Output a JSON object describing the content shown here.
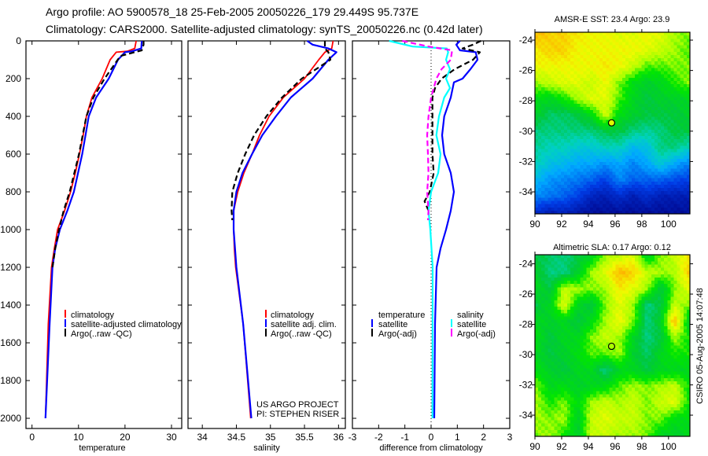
{
  "header": {
    "line1": "Argo profile: AO 5900578_18 25-Feb-2005 20050226_179 29.449S 95.737E",
    "line2": "Climatology: CARS2000. Satellite-adjusted climatology: synTS_20050226.nc (0.42d later)"
  },
  "colors": {
    "clim": "#ff0000",
    "sat": "#0000ff",
    "argo": "#000000",
    "sal_sat": "#00ffff",
    "sal_argo": "#ff00ff"
  },
  "chart_data": [
    {
      "type": "line",
      "id": "temperature",
      "xlabel": "temperature",
      "ylabel": "",
      "xlim": [
        -1.3,
        32.2
      ],
      "ylim": [
        0,
        2054
      ],
      "y_inverted": true,
      "xticks": [
        "0",
        "10",
        "20",
        "30"
      ],
      "xtick_values": [
        0,
        10,
        20,
        30
      ],
      "yticks": [
        "0",
        "200",
        "400",
        "600",
        "800",
        "1000",
        "1200",
        "1400",
        "1600",
        "1800",
        "2000"
      ],
      "ytick_values": [
        0,
        200,
        400,
        600,
        800,
        1000,
        1200,
        1400,
        1600,
        1800,
        2000
      ],
      "legend": [
        "climatology",
        "satellite-adjusted climatology",
        "Argo(..raw -QC)"
      ],
      "series": [
        {
          "name": "climatology",
          "color": "clim",
          "dash": false,
          "depth": [
            0,
            40,
            55,
            60,
            100,
            200,
            300,
            400,
            500,
            600,
            700,
            800,
            900,
            1000,
            1100,
            1200,
            1500,
            2000
          ],
          "values": [
            22.4,
            22.1,
            20.5,
            18.1,
            16.8,
            15.1,
            12.9,
            11.7,
            11.0,
            10.2,
            9.3,
            8.3,
            7.0,
            5.5,
            4.8,
            4.2,
            3.5,
            2.9
          ]
        },
        {
          "name": "satellite-adjusted climatology",
          "color": "sat",
          "dash": false,
          "depth": [
            0,
            40,
            55,
            60,
            100,
            200,
            300,
            400,
            500,
            600,
            700,
            800,
            900,
            1000,
            1100,
            1200,
            1500,
            2000
          ],
          "values": [
            23.6,
            23.5,
            21.5,
            20.0,
            18.5,
            16.5,
            13.8,
            12.2,
            11.5,
            10.8,
            9.9,
            9.0,
            7.6,
            6.0,
            5.0,
            4.4,
            3.8,
            2.9
          ]
        },
        {
          "name": "Argo(..raw -QC)",
          "color": "argo",
          "dash": true,
          "depth": [
            0,
            20,
            50,
            80,
            200,
            300,
            400,
            500,
            600,
            700,
            800,
            900,
            1000,
            1100,
            1200
          ],
          "values": [
            24.0,
            24.0,
            23.6,
            19.0,
            15.6,
            13.2,
            11.7,
            10.9,
            10.1,
            9.1,
            8.1,
            6.8,
            5.8,
            5.0,
            4.4
          ]
        }
      ]
    },
    {
      "type": "line",
      "id": "salinity",
      "xlabel": "salinity",
      "xlim": [
        33.79,
        36.1
      ],
      "ylim": [
        0,
        2054
      ],
      "y_inverted": true,
      "xticks": [
        "34",
        "34.5",
        "35",
        "35.5",
        "36"
      ],
      "xtick_values": [
        34,
        34.5,
        35,
        35.5,
        36
      ],
      "legend": [
        "climatology",
        "satellite adj. clim.",
        "Argo(..raw -QC)"
      ],
      "annotation": [
        "US ARGO PROJECT",
        "PI: STEPHEN RISER"
      ],
      "series": [
        {
          "name": "climatology",
          "color": "clim",
          "dash": false,
          "depth": [
            0,
            40,
            60,
            100,
            200,
            300,
            400,
            500,
            600,
            700,
            800,
            900,
            1000,
            1100,
            1200,
            1500,
            2000
          ],
          "values": [
            35.92,
            35.9,
            35.8,
            35.71,
            35.5,
            35.19,
            34.98,
            34.84,
            34.73,
            34.61,
            34.52,
            34.46,
            34.46,
            34.47,
            34.49,
            34.6,
            34.71
          ]
        },
        {
          "name": "satellite adj. clim.",
          "color": "sat",
          "dash": false,
          "depth": [
            0,
            20,
            40,
            60,
            100,
            200,
            300,
            400,
            500,
            600,
            700,
            800,
            900,
            1000,
            1200,
            1500,
            2000
          ],
          "values": [
            35.54,
            35.62,
            35.85,
            35.97,
            35.85,
            35.62,
            35.3,
            35.08,
            34.88,
            34.73,
            34.59,
            34.5,
            34.46,
            34.46,
            34.5,
            34.6,
            34.72
          ]
        },
        {
          "name": "Argo(..raw -QC)",
          "color": "argo",
          "dash": true,
          "depth": [
            0,
            40,
            60,
            100,
            200,
            300,
            400,
            500,
            600,
            700,
            800,
            900,
            950
          ],
          "values": [
            35.8,
            35.8,
            35.85,
            35.88,
            35.46,
            35.17,
            34.94,
            34.76,
            34.63,
            34.52,
            34.44,
            34.43,
            34.44
          ]
        }
      ]
    },
    {
      "type": "line",
      "id": "difference",
      "xlabel": "difference from climatology",
      "xlim": [
        -3,
        3
      ],
      "ylim": [
        0,
        2054
      ],
      "y_inverted": true,
      "xticks": [
        "-3",
        "-2",
        "-1",
        "0",
        "1",
        "2",
        "3"
      ],
      "xtick_values": [
        -3,
        -2,
        -1,
        0,
        1,
        2,
        3
      ],
      "zero_line": true,
      "legend_groups": [
        {
          "title": "temperature",
          "items": [
            "satellite",
            "Argo(-adj)"
          ]
        },
        {
          "title": "salinity",
          "items": [
            "satellite",
            "Argo(-adj)"
          ]
        }
      ],
      "series": [
        {
          "name": "temperature satellite",
          "color": "sat",
          "dash": false,
          "depth": [
            0,
            20,
            50,
            60,
            100,
            150,
            200,
            220,
            300,
            400,
            500,
            600,
            700,
            800,
            900,
            1000,
            1100,
            1200,
            1500,
            2000
          ],
          "values": [
            1.1,
            0.96,
            1.1,
            1.7,
            1.77,
            1.5,
            1.2,
            0.87,
            0.75,
            0.5,
            0.42,
            0.5,
            0.75,
            0.87,
            0.75,
            0.57,
            0.36,
            0.21,
            0.15,
            0.12
          ]
        },
        {
          "name": "temperature Argo(-adj)",
          "color": "argo",
          "dash": true,
          "depth": [
            0,
            20,
            40,
            60,
            100,
            150,
            200,
            250,
            300,
            400,
            500,
            600,
            700,
            800,
            850,
            900
          ],
          "values": [
            1.9,
            1.6,
            1.2,
            1.86,
            1.6,
            0.9,
            0.4,
            0.15,
            0.05,
            0.05,
            0.05,
            0.05,
            0.1,
            -0.05,
            -0.25,
            -0.1
          ]
        },
        {
          "name": "salinity satellite",
          "color": "sal_sat",
          "dash": false,
          "depth": [
            0,
            30,
            40,
            60,
            100,
            150,
            200,
            250,
            300,
            400,
            500,
            600,
            700,
            800,
            900,
            1000,
            1200,
            2000
          ],
          "values": [
            -1.6,
            -0.7,
            0.6,
            0.65,
            0.57,
            0.72,
            0.57,
            0.72,
            0.5,
            0.3,
            0.2,
            0.36,
            0.27,
            0.0,
            -0.1,
            -0.03,
            0.06,
            0.05
          ]
        },
        {
          "name": "salinity Argo(-adj)",
          "color": "sal_argo",
          "dash": true,
          "depth": [
            0,
            30,
            50,
            100,
            150,
            200,
            300,
            400,
            500,
            600,
            700,
            800,
            900,
            950
          ],
          "values": [
            -1.1,
            -0.1,
            0.8,
            0.75,
            0.4,
            0.2,
            0.0,
            -0.1,
            -0.15,
            -0.12,
            -0.1,
            -0.15,
            -0.1,
            -0.12
          ]
        }
      ]
    },
    {
      "type": "heatmap",
      "id": "sst-map",
      "title": "AMSR-E SST: 23.4 Argo: 23.9",
      "xlim": [
        90,
        101.6
      ],
      "ylim": [
        -35.45,
        -23.48
      ],
      "xticks": [
        "90",
        "92",
        "94",
        "96",
        "98",
        "100"
      ],
      "xtick_values": [
        90,
        92,
        94,
        96,
        98,
        100
      ],
      "yticks": [
        "-24",
        "-26",
        "-28",
        "-30",
        "-32",
        "-34"
      ],
      "ytick_values": [
        -24,
        -26,
        -28,
        -30,
        -32,
        -34
      ],
      "marker": {
        "lon": 95.737,
        "lat": -29.449,
        "value_norm": 0.78
      },
      "grid_note": "rows north to south, normalized 0-1",
      "grid": [
        [
          0.88,
          0.85,
          0.85,
          0.82,
          0.8,
          0.8,
          0.78,
          0.78,
          0.8,
          0.78,
          0.72,
          0.7
        ],
        [
          0.82,
          0.85,
          0.85,
          0.8,
          0.8,
          0.8,
          0.8,
          0.8,
          0.78,
          0.75,
          0.72,
          0.68
        ],
        [
          0.8,
          0.8,
          0.8,
          0.8,
          0.8,
          0.82,
          0.8,
          0.75,
          0.68,
          0.68,
          0.7,
          0.7
        ],
        [
          0.72,
          0.75,
          0.78,
          0.78,
          0.75,
          0.8,
          0.7,
          0.62,
          0.58,
          0.6,
          0.66,
          0.7
        ],
        [
          0.62,
          0.6,
          0.65,
          0.72,
          0.78,
          0.78,
          0.68,
          0.6,
          0.55,
          0.58,
          0.58,
          0.6
        ],
        [
          0.58,
          0.52,
          0.52,
          0.55,
          0.62,
          0.76,
          0.62,
          0.58,
          0.55,
          0.55,
          0.55,
          0.58
        ],
        [
          0.5,
          0.5,
          0.5,
          0.5,
          0.5,
          0.55,
          0.55,
          0.5,
          0.48,
          0.5,
          0.55,
          0.55
        ],
        [
          0.48,
          0.45,
          0.45,
          0.42,
          0.42,
          0.45,
          0.45,
          0.38,
          0.4,
          0.5,
          0.5,
          0.45
        ],
        [
          0.45,
          0.4,
          0.38,
          0.35,
          0.35,
          0.32,
          0.35,
          0.3,
          0.35,
          0.42,
          0.35,
          0.3
        ],
        [
          0.38,
          0.32,
          0.3,
          0.28,
          0.25,
          0.2,
          0.3,
          0.25,
          0.25,
          0.25,
          0.22,
          0.2
        ],
        [
          0.3,
          0.28,
          0.25,
          0.2,
          0.12,
          0.1,
          0.15,
          0.1,
          0.15,
          0.1,
          0.1,
          0.1
        ],
        [
          0.15,
          0.1,
          0.12,
          0.08,
          0.05,
          0.05,
          0.05,
          0.05,
          0.05,
          0.05,
          0.05,
          0.05
        ]
      ]
    },
    {
      "type": "heatmap",
      "id": "sla-map",
      "title": "Altimetric SLA: 0.17 Argo: 0.12",
      "xlim": [
        90,
        101.6
      ],
      "ylim": [
        -35.4,
        -23.4
      ],
      "xticks": [
        "90",
        "92",
        "94",
        "96",
        "98",
        "100"
      ],
      "xtick_values": [
        90,
        92,
        94,
        96,
        98,
        100
      ],
      "yticks": [
        "-24",
        "-26",
        "-28",
        "-30",
        "-32",
        "-34"
      ],
      "ytick_values": [
        -24,
        -26,
        -28,
        -30,
        -32,
        -34
      ],
      "marker": {
        "lon": 95.737,
        "lat": -29.449,
        "value_norm": 0.72
      },
      "grid_note": "rows north to south, normalized 0-1",
      "grid": [
        [
          0.55,
          0.52,
          0.5,
          0.55,
          0.6,
          0.72,
          0.75,
          0.78,
          0.6,
          0.7,
          0.75,
          0.82
        ],
        [
          0.58,
          0.5,
          0.5,
          0.58,
          0.72,
          0.78,
          0.88,
          0.85,
          0.75,
          0.72,
          0.72,
          0.85
        ],
        [
          0.6,
          0.55,
          0.75,
          0.72,
          0.7,
          0.72,
          0.82,
          0.78,
          0.72,
          0.55,
          0.7,
          0.78
        ],
        [
          0.55,
          0.6,
          0.78,
          0.6,
          0.55,
          0.7,
          0.78,
          0.72,
          0.5,
          0.55,
          0.75,
          0.7
        ],
        [
          0.6,
          0.58,
          0.6,
          0.55,
          0.62,
          0.72,
          0.8,
          0.7,
          0.5,
          0.58,
          0.88,
          0.6
        ],
        [
          0.62,
          0.55,
          0.6,
          0.6,
          0.7,
          0.75,
          0.72,
          0.6,
          0.5,
          0.55,
          0.72,
          0.65
        ],
        [
          0.6,
          0.55,
          0.58,
          0.62,
          0.68,
          0.68,
          0.72,
          0.58,
          0.52,
          0.6,
          0.65,
          0.65
        ],
        [
          0.62,
          0.58,
          0.55,
          0.6,
          0.6,
          0.5,
          0.6,
          0.6,
          0.55,
          0.6,
          0.6,
          0.6
        ],
        [
          0.7,
          0.6,
          0.62,
          0.58,
          0.6,
          0.62,
          0.68,
          0.72,
          0.7,
          0.72,
          0.75,
          0.65
        ],
        [
          0.72,
          0.65,
          0.7,
          0.62,
          0.72,
          0.75,
          0.72,
          0.75,
          0.7,
          0.75,
          0.78,
          0.65
        ],
        [
          0.72,
          0.7,
          0.72,
          0.58,
          0.75,
          0.78,
          0.75,
          0.75,
          0.7,
          0.7,
          0.62,
          0.62
        ],
        [
          0.7,
          0.72,
          0.65,
          0.58,
          0.75,
          0.75,
          0.72,
          0.72,
          0.7,
          0.6,
          0.58,
          0.6
        ]
      ]
    }
  ],
  "footer": {
    "credit": "CSIRO 05-Aug-2005 14:07:48"
  }
}
